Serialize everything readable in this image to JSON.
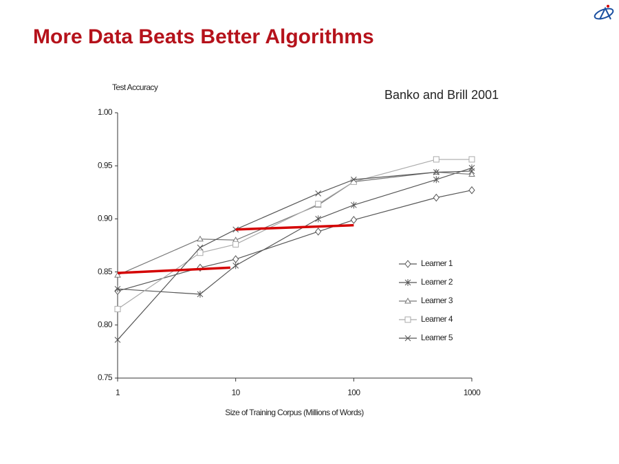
{
  "chart_data": {
    "type": "line",
    "title": "More Data Beats Better Algorithms",
    "annotation": "Banko and Brill 2001",
    "y_label": "Test Accuracy",
    "x_label": "Size of Training Corpus (Millions of Words)",
    "log_x": true,
    "x": [
      1,
      5,
      10,
      50,
      100,
      500,
      1000
    ],
    "xlim": [
      1,
      1000
    ],
    "xticks": [
      1,
      10,
      100,
      1000
    ],
    "ylim": [
      0.75,
      1.0
    ],
    "yticks": [
      {
        "value": 0.75,
        "label": "0.75"
      },
      {
        "value": 0.8,
        "label": "0.80"
      },
      {
        "value": 0.85,
        "label": "0.85"
      },
      {
        "value": 0.9,
        "label": "0.90"
      },
      {
        "value": 0.95,
        "label": "0.95"
      },
      {
        "value": 1.0,
        "label": "1.00"
      }
    ],
    "series": [
      {
        "name": "Learner 1",
        "color": "#555555",
        "marker": "diamond",
        "values": [
          0.832,
          0.854,
          0.862,
          0.888,
          0.899,
          0.92,
          0.927
        ]
      },
      {
        "name": "Learner 2",
        "color": "#555555",
        "marker": "asterisk",
        "values": [
          0.834,
          0.829,
          0.856,
          0.9,
          0.913,
          0.937,
          0.948
        ]
      },
      {
        "name": "Learner 3",
        "color": "#777777",
        "marker": "triangle",
        "values": [
          0.847,
          0.881,
          0.88,
          0.913,
          0.935,
          0.944,
          0.942
        ]
      },
      {
        "name": "Learner 4",
        "color": "#aaaaaa",
        "marker": "square",
        "values": [
          0.815,
          0.868,
          0.876,
          0.914,
          0.935,
          0.956,
          0.956
        ]
      },
      {
        "name": "Learner 5",
        "color": "#555555",
        "marker": "x",
        "values": [
          0.786,
          0.873,
          0.89,
          0.924,
          0.937,
          0.944,
          0.945
        ]
      }
    ],
    "highlights": [
      {
        "color": "#d40000",
        "x": [
          1,
          9
        ],
        "values": [
          0.849,
          0.854
        ]
      },
      {
        "color": "#d40000",
        "x": [
          10,
          100
        ],
        "values": [
          0.89,
          0.894
        ]
      }
    ]
  }
}
